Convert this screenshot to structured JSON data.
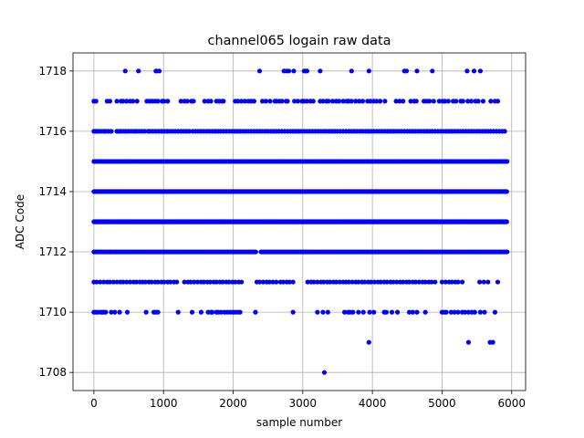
{
  "chart_data": {
    "type": "scatter",
    "title": "channel065 logain raw data",
    "xlabel": "sample number",
    "ylabel": "ADC Code",
    "xlim": [
      -300,
      6200
    ],
    "ylim": [
      1707.4,
      1718.6
    ],
    "xticks": [
      0,
      1000,
      2000,
      3000,
      4000,
      5000,
      6000
    ],
    "yticks": [
      1708,
      1710,
      1712,
      1714,
      1716,
      1718
    ],
    "grid": true,
    "marker_color": "#0000ff",
    "series": [
      {
        "name": "",
        "dense_levels": [
          {
            "y": 1713,
            "x_start": 0,
            "x_end": 5930
          },
          {
            "y": 1714,
            "x_start": 0,
            "x_end": 5930
          }
        ],
        "frequent_levels": [
          {
            "y": 1712,
            "x": [
              0,
              35,
              70,
              110,
              150,
              190,
              230,
              270,
              310,
              350,
              390,
              430,
              470,
              510,
              550,
              590,
              630,
              670,
              710,
              750,
              790,
              830,
              870,
              910,
              950,
              990,
              1030,
              1070,
              1110,
              1150,
              1190,
              1230,
              1270,
              1310,
              1350,
              1390,
              1430,
              1470,
              1510,
              1550,
              1590,
              1630,
              1670,
              1710,
              1750,
              1790,
              1830,
              1870,
              1910,
              1950,
              1990,
              2030,
              2070,
              2110,
              2150,
              2190,
              2230,
              2270,
              2310,
              2400,
              2440,
              2480,
              2520,
              2560,
              2600,
              2640,
              2680,
              2720,
              2760,
              2800,
              2840,
              2880,
              2920,
              2960,
              3000,
              3040,
              3080,
              3120,
              3160,
              3200,
              3240,
              3280,
              3320,
              3360,
              3400,
              3440,
              3480,
              3520,
              3560,
              3600,
              3640,
              3680,
              3720,
              3760,
              3800,
              3840,
              3880,
              3920,
              3960,
              4000,
              4040,
              4080,
              4120,
              4160,
              4200,
              4240,
              4280,
              4320,
              4360,
              4400,
              4440,
              4480,
              4520,
              4560,
              4600,
              4640,
              4680,
              4720,
              4760,
              4800,
              4840,
              4880,
              4920,
              4960,
              5000,
              5040,
              5080,
              5120,
              5160,
              5200,
              5240,
              5280,
              5320,
              5360,
              5400,
              5440,
              5480,
              5520,
              5560,
              5600,
              5640,
              5680,
              5720,
              5760,
              5800,
              5840,
              5880,
              5920
            ]
          },
          {
            "y": 1715,
            "x": [
              0,
              40,
              80,
              120,
              160,
              200,
              240,
              280,
              320,
              360,
              400,
              440,
              480,
              520,
              560,
              600,
              640,
              680,
              720,
              760,
              800,
              840,
              880,
              920,
              960,
              1000,
              1040,
              1080,
              1120,
              1160,
              1200,
              1240,
              1280,
              1320,
              1360,
              1400,
              1440,
              1480,
              1520,
              1560,
              1600,
              1640,
              1680,
              1720,
              1760,
              1800,
              1840,
              1880,
              1920,
              1960,
              2000,
              2040,
              2080,
              2120,
              2160,
              2200,
              2240,
              2280,
              2320,
              2360,
              2400,
              2440,
              2480,
              2520,
              2560,
              2600,
              2640,
              2680,
              2720,
              2760,
              2800,
              2840,
              2880,
              2920,
              2960,
              3000,
              3040,
              3080,
              3120,
              3160,
              3200,
              3240,
              3280,
              3320,
              3360,
              3400,
              3440,
              3480,
              3520,
              3560,
              3600,
              3640,
              3680,
              3720,
              3760,
              3800,
              3840,
              3880,
              3920,
              3960,
              4000,
              4040,
              4080,
              4120,
              4160,
              4200,
              4240,
              4280,
              4320,
              4360,
              4400,
              4440,
              4480,
              4520,
              4560,
              4600,
              4640,
              4680,
              4720,
              4760,
              4800,
              4840,
              4880,
              4920,
              4960,
              5000,
              5040,
              5080,
              5120,
              5160,
              5200,
              5240,
              5280,
              5320,
              5360,
              5400,
              5440,
              5480,
              5520,
              5560,
              5600,
              5640,
              5680,
              5720,
              5760,
              5800,
              5840,
              5880,
              5920
            ]
          }
        ],
        "points": [
          {
            "y": 1716,
            "x": [
              0,
              30,
              60,
              100,
              140,
              170,
              210,
              250,
              330,
              360,
              390,
              430,
              460,
              500,
              540,
              580,
              610,
              650,
              690,
              730,
              780,
              810,
              850,
              890,
              930,
              970,
              1010,
              1050,
              1090,
              1130,
              1170,
              1210,
              1250,
              1290,
              1330,
              1370,
              1420,
              1460,
              1500,
              1540,
              1580,
              1620,
              1660,
              1700,
              1740,
              1780,
              1820,
              1860,
              1900,
              1940,
              1980,
              2020,
              2060,
              2100,
              2140,
              2180,
              2220,
              2260,
              2300,
              2340,
              2380,
              2420,
              2460,
              2500,
              2540,
              2580,
              2620,
              2660,
              2700,
              2740,
              2780,
              2820,
              2860,
              2900,
              2940,
              2980,
              3020,
              3060,
              3100,
              3140,
              3180,
              3220,
              3260,
              3300,
              3340,
              3380,
              3420,
              3460,
              3500,
              3540,
              3580,
              3620,
              3660,
              3700,
              3740,
              3780,
              3820,
              3860,
              3900,
              3940,
              3980,
              4020,
              4060,
              4100,
              4140,
              4180,
              4220,
              4260,
              4300,
              4340,
              4380,
              4420,
              4460,
              4500,
              4540,
              4580,
              4620,
              4660,
              4700,
              4740,
              4780,
              4820,
              4860,
              4900,
              4940,
              4980,
              5020,
              5060,
              5100,
              5140,
              5180,
              5220,
              5260,
              5300,
              5340,
              5380,
              5420,
              5460,
              5500,
              5540,
              5580,
              5620,
              5660,
              5700,
              5740,
              5780,
              5820,
              5860,
              5900
            ]
          },
          {
            "y": 1711,
            "x": [
              0,
              40,
              90,
              140,
              190,
              230,
              280,
              330,
              380,
              420,
              470,
              520,
              570,
              610,
              660,
              700,
              740,
              790,
              830,
              880,
              920,
              970,
              1010,
              1060,
              1100,
              1150,
              1190,
              1300,
              1350,
              1390,
              1440,
              1490,
              1540,
              1580,
              1630,
              1670,
              1720,
              1760,
              1810,
              1850,
              1900,
              1940,
              1990,
              2030,
              2080,
              2120,
              2340,
              2380,
              2430,
              2480,
              2520,
              2570,
              2620,
              2680,
              2720,
              2770,
              2810,
              2860,
              3070,
              3120,
              3160,
              3210,
              3260,
              3300,
              3350,
              3390,
              3440,
              3480,
              3530,
              3580,
              3620,
              3660,
              3710,
              3760,
              3800,
              3850,
              3890,
              3940,
              3980,
              4030,
              4080,
              4120,
              4170,
              4210,
              4260,
              4300,
              4350,
              4400,
              4440,
              4490,
              4530,
              4580,
              4620,
              4670,
              4720,
              4760,
              4810,
              4850,
              4900,
              5000,
              5050,
              5100,
              5140,
              5190,
              5230,
              5290,
              5540,
              5600,
              5660,
              5800
            ]
          },
          {
            "y": 1717,
            "x": [
              0,
              30,
              190,
              230,
              330,
              390,
              420,
              470,
              520,
              560,
              620,
              760,
              800,
              840,
              880,
              920,
              980,
              1010,
              1060,
              1250,
              1300,
              1340,
              1400,
              1430,
              1590,
              1640,
              1680,
              1760,
              1800,
              1840,
              1860,
              2030,
              2070,
              2120,
              2170,
              2220,
              2260,
              2300,
              2420,
              2470,
              2530,
              2600,
              2620,
              2660,
              2700,
              2760,
              2780,
              2880,
              2930,
              2990,
              3020,
              3060,
              3110,
              3150,
              3250,
              3290,
              3340,
              3370,
              3430,
              3480,
              3520,
              3580,
              3630,
              3660,
              3700,
              3760,
              3810,
              3860,
              3930,
              3970,
              4020,
              4060,
              4110,
              4180,
              4340,
              4390,
              4440,
              4550,
              4600,
              4630,
              4740,
              4780,
              4820,
              4880,
              4960,
              5010,
              5040,
              5090,
              5160,
              5200,
              5270,
              5300,
              5370,
              5420,
              5480,
              5520,
              5590,
              5700,
              5760,
              5800
            ]
          },
          {
            "y": 1710,
            "x": [
              0,
              30,
              60,
              100,
              120,
              140,
              170,
              250,
              300,
              370,
              480,
              750,
              860,
              890,
              920,
              1210,
              1410,
              1540,
              1640,
              1680,
              1700,
              1760,
              1790,
              1830,
              1880,
              1920,
              1960,
              2000,
              2030,
              2070,
              2100,
              2320,
              2860,
              3210,
              3290,
              3360,
              3600,
              3650,
              3680,
              3720,
              3800,
              3870,
              3960,
              4020,
              4170,
              4200,
              4280,
              4360,
              4530,
              4580,
              4640,
              4760,
              5000,
              5030,
              5060,
              5130,
              5180,
              5230,
              5290,
              5330,
              5380,
              5430,
              5470,
              5550,
              5610,
              5760
            ]
          },
          {
            "y": 1718,
            "x": [
              450,
              640,
              890,
              900,
              940,
              2380,
              2730,
              2770,
              2800,
              2870,
              3020,
              3040,
              3060,
              3250,
              3700,
              3950,
              4460,
              4490,
              4640,
              4860,
              5360,
              5460,
              5550
            ]
          },
          {
            "y": 1709,
            "x": [
              3950,
              5380,
              5690,
              5730
            ]
          },
          {
            "y": 1708,
            "x": [
              3310
            ]
          }
        ]
      }
    ]
  }
}
